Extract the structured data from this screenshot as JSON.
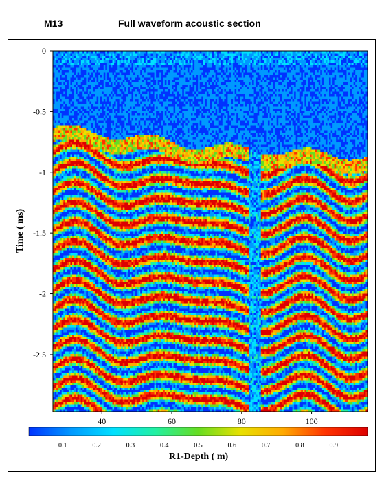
{
  "header": {
    "well_id": "M13",
    "title": "Full waveform acoustic section"
  },
  "chart_data": {
    "type": "heatmap",
    "title": "Full waveform acoustic section",
    "xlabel": "",
    "ylabel": "Time ( ms)",
    "xlim": [
      26,
      116
    ],
    "ylim": [
      0,
      -2.97
    ],
    "x_ticks": [
      40,
      60,
      80,
      100
    ],
    "y_ticks": [
      0,
      -0.5,
      -1,
      -1.5,
      -2,
      -2.5
    ],
    "y_tick_labels": [
      "0",
      "-0.5",
      "-1",
      "-1.5",
      "-2",
      "-2.5"
    ],
    "colorbar": {
      "label": "R1-Depth ( m)",
      "range": [
        0,
        1
      ],
      "ticks": [
        0.1,
        0.2,
        0.3,
        0.4,
        0.5,
        0.6,
        0.7,
        0.8,
        0.9
      ],
      "colors": [
        "#0033ff",
        "#0099ff",
        "#00e0ff",
        "#22f0a0",
        "#66dd22",
        "#e8e000",
        "#ffaa00",
        "#ff3300",
        "#dd0000"
      ]
    },
    "features": {
      "first_arrival_ms_start": -0.62,
      "first_arrival_ms_mid": -0.78,
      "first_arrival_ms_end": -0.86,
      "quiet_zone_depth_m": [
        82,
        85
      ]
    }
  }
}
